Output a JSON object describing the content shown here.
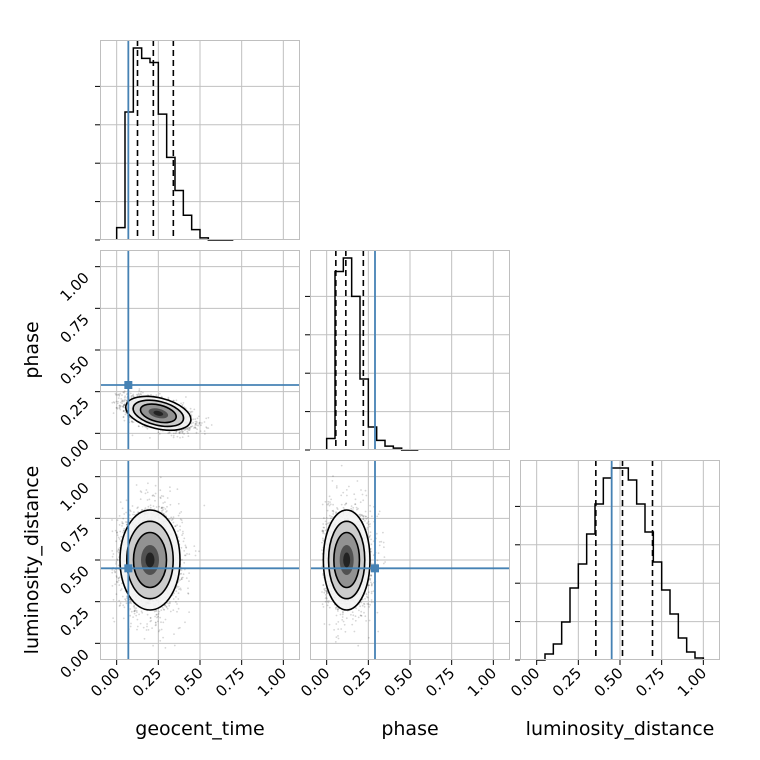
{
  "colors": {
    "truth": "#4682b4",
    "grid": "#c0c0c0",
    "hist": "#000000",
    "quantile": "#000000",
    "frame": "#bfbfbf",
    "scatter": "#000000",
    "background": "#ffffff"
  },
  "chart_data": {
    "type": "corner",
    "parameters": [
      "geocent_time",
      "phase",
      "luminosity_distance"
    ],
    "axis_labels": {
      "geocent_time": "geocent_time",
      "phase": "phase",
      "luminosity_distance": "luminosity_distance"
    },
    "range": [
      -0.1,
      1.1
    ],
    "ticks": [
      0.0,
      0.25,
      0.5,
      0.75,
      1.0
    ],
    "tick_labels": [
      "0.00",
      "0.25",
      "0.50",
      "0.75",
      "1.00"
    ],
    "grid": true,
    "truths": {
      "geocent_time": 0.07,
      "phase": 0.29,
      "luminosity_distance": 0.45
    },
    "histograms": {
      "geocent_time": {
        "bin_edges": [
          0.0,
          0.05,
          0.1,
          0.15,
          0.2,
          0.25,
          0.3,
          0.35,
          0.4,
          0.45,
          0.5,
          0.55,
          0.6,
          0.65,
          0.7
        ],
        "counts": [
          6,
          62,
          93,
          88,
          86,
          61,
          40,
          24,
          12,
          5,
          1,
          0,
          0,
          0
        ],
        "quantiles": [
          0.125,
          0.22,
          0.34
        ]
      },
      "phase": {
        "bin_edges": [
          0.0,
          0.05,
          0.1,
          0.15,
          0.2,
          0.25,
          0.3,
          0.35,
          0.4,
          0.45,
          0.5,
          0.55
        ],
        "counts": [
          6,
          93,
          100,
          80,
          37,
          12,
          5,
          2,
          1,
          0,
          0
        ],
        "quantiles": [
          0.055,
          0.115,
          0.22
        ]
      },
      "luminosity_distance": {
        "bin_edges": [
          0.0,
          0.05,
          0.1,
          0.15,
          0.2,
          0.25,
          0.3,
          0.35,
          0.4,
          0.45,
          0.5,
          0.55,
          0.6,
          0.65,
          0.7,
          0.75,
          0.8,
          0.85,
          0.9,
          0.95,
          1.0
        ],
        "counts": [
          0,
          3,
          8,
          19,
          36,
          48,
          63,
          78,
          91,
          96,
          96,
          90,
          78,
          64,
          49,
          35,
          23,
          11,
          4,
          1
        ],
        "quantiles": [
          0.355,
          0.515,
          0.695
        ]
      }
    },
    "joint": [
      {
        "x": "geocent_time",
        "y": "phase",
        "mean": [
          0.25,
          0.12
        ],
        "sd": [
          0.1,
          0.05
        ],
        "corr": -0.55,
        "n": 2200
      },
      {
        "x": "geocent_time",
        "y": "luminosity_distance",
        "mean": [
          0.2,
          0.5
        ],
        "sd": [
          0.09,
          0.15
        ],
        "corr": 0.0,
        "n": 2500
      },
      {
        "x": "phase",
        "y": "luminosity_distance",
        "mean": [
          0.12,
          0.5
        ],
        "sd": [
          0.07,
          0.15
        ],
        "corr": 0.0,
        "n": 2500
      }
    ]
  }
}
